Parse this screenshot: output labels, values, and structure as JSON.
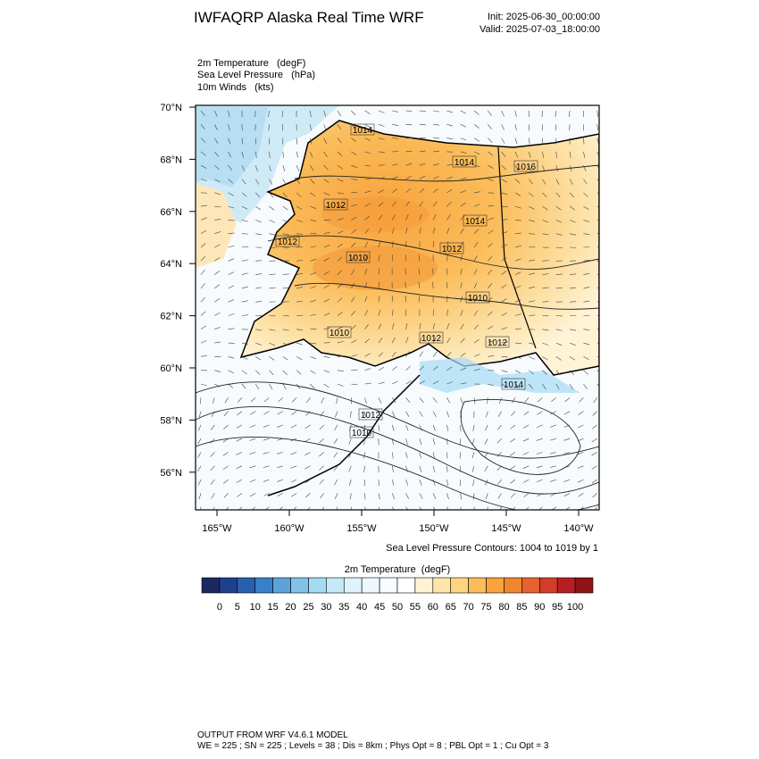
{
  "header": {
    "title": "IWFAQRP Alaska Real Time WRF",
    "init": "Init: 2025-06-30_00:00:00",
    "valid": "Valid: 2025-07-03_18:00:00"
  },
  "fields": [
    "2m Temperature   (degF)",
    "Sea Level Pressure   (hPa)",
    "10m Winds   (kts)"
  ],
  "map": {
    "lat_ticks": [
      {
        "value": 70,
        "label": "70°N"
      },
      {
        "value": 68,
        "label": "68°N"
      },
      {
        "value": 66,
        "label": "66°N"
      },
      {
        "value": 64,
        "label": "64°N"
      },
      {
        "value": 62,
        "label": "62°N"
      },
      {
        "value": 60,
        "label": "60°N"
      },
      {
        "value": 58,
        "label": "58°N"
      },
      {
        "value": 56,
        "label": "56°N"
      }
    ],
    "lon_ticks": [
      {
        "value": -165,
        "label": "165°W"
      },
      {
        "value": -160,
        "label": "160°W"
      },
      {
        "value": -155,
        "label": "155°W"
      },
      {
        "value": -150,
        "label": "150°W"
      },
      {
        "value": -145,
        "label": "145°W"
      },
      {
        "value": -140,
        "label": "140°W"
      }
    ],
    "contour_labels": [
      "1014",
      "1014",
      "1016",
      "1012",
      "1014",
      "1012",
      "1012",
      "1010",
      "1010",
      "1010",
      "1012",
      "1012",
      "1014",
      "1012",
      "1010"
    ]
  },
  "contour_info": "Sea Level Pressure Contours: 1004 to 1019 by 1",
  "colorbar": {
    "title": "2m Temperature  (degF)",
    "ticks": [
      0,
      5,
      10,
      15,
      20,
      25,
      30,
      35,
      40,
      45,
      50,
      55,
      60,
      65,
      70,
      75,
      80,
      85,
      90,
      95,
      100
    ],
    "colors": [
      "#1a2a5e",
      "#1f3f8f",
      "#2860b0",
      "#3a80c8",
      "#5ba3d8",
      "#80c2e8",
      "#a5daf5",
      "#c6e9f8",
      "#dff3fb",
      "#eef8fc",
      "#f8fcfe",
      "#ffffff",
      "#fff3d6",
      "#ffe6a8",
      "#fdd581",
      "#fbbd5a",
      "#f8a33c",
      "#f0862e",
      "#e66230",
      "#d43c2a",
      "#b71e22",
      "#8e1418"
    ]
  },
  "footer": [
    "OUTPUT FROM WRF V4.6.1 MODEL",
    "WE = 225 ; SN = 225 ; Levels = 38 ; Dis = 8km ; Phys Opt = 8 ; PBL Opt = 1 ; Cu Opt = 3"
  ]
}
